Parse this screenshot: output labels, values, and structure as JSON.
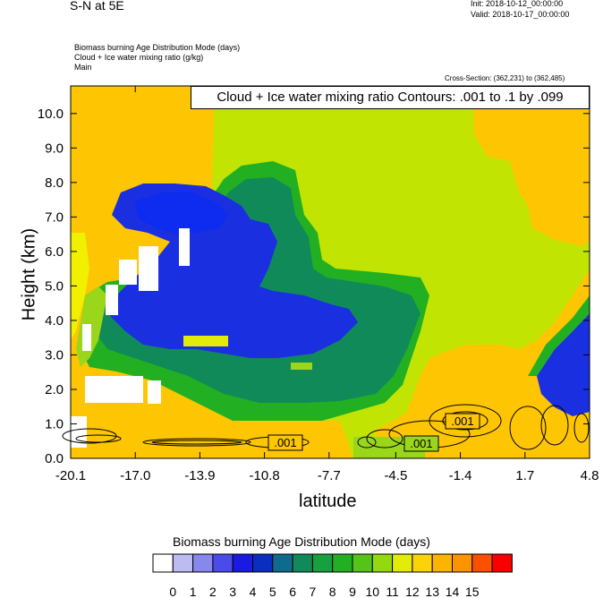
{
  "header": {
    "title": "S-N at 5E",
    "init": "Init: 2018-10-12_00:00:00",
    "valid": "Valid: 2018-10-17_00:00:00",
    "desc_line1": "Biomass burning Age Distribution Mode   (days)",
    "desc_line2": "Cloud + Ice water mixing ratio   (g/kg)",
    "desc_line3": "Main",
    "cross_section": "Cross-Section: (362,231) to (362,485)"
  },
  "contour_info": "Cloud + Ice water mixing ratio Contours: .001 to .1 by .099",
  "chart_data": {
    "type": "heatmap",
    "xlabel": "latitude",
    "ylabel": "Height (km)",
    "x_ticks": [
      "-20.1",
      "-17.0",
      "-13.9",
      "-10.8",
      "-7.7",
      "-4.5",
      "-1.4",
      "1.7",
      "4.8"
    ],
    "y_ticks": [
      "0.0",
      "1.0",
      "2.0",
      "3.0",
      "4.0",
      "5.0",
      "6.0",
      "7.0",
      "8.0",
      "9.0",
      "10.0"
    ],
    "xlim": [
      -20.1,
      4.8
    ],
    "ylim": [
      0,
      10.8
    ],
    "contour_labels": [
      ".001",
      ".001",
      ".001"
    ],
    "colorbar": {
      "title": "Biomass burning Age Distribution Mode  (days)",
      "labels": [
        "0",
        "1",
        "2",
        "3",
        "4",
        "5",
        "6",
        "7",
        "8",
        "9",
        "10",
        "11",
        "12",
        "13",
        "14",
        "15"
      ],
      "colors": [
        "#ffffff",
        "#bcbcf2",
        "#8787ee",
        "#4b4bea",
        "#1a1ae0",
        "#0a2ebe",
        "#0f6b8e",
        "#118a5a",
        "#16a040",
        "#22b022",
        "#56c318",
        "#94d810",
        "#e3ec08",
        "#fbd308",
        "#fdb400",
        "#fc9300",
        "#fa5000",
        "#f80000"
      ]
    },
    "field_colors": {
      "orange": "#fdc502",
      "yellow_green": "#c2e402",
      "light_green": "#9ad61a",
      "green": "#1aa63c",
      "teal": "#118a5a",
      "blue": "#1a2fe0",
      "bright_blue": "#0d2cf0",
      "white": "#ffffff",
      "yellow": "#f0f000",
      "orange_alt": "#fdb400"
    }
  }
}
